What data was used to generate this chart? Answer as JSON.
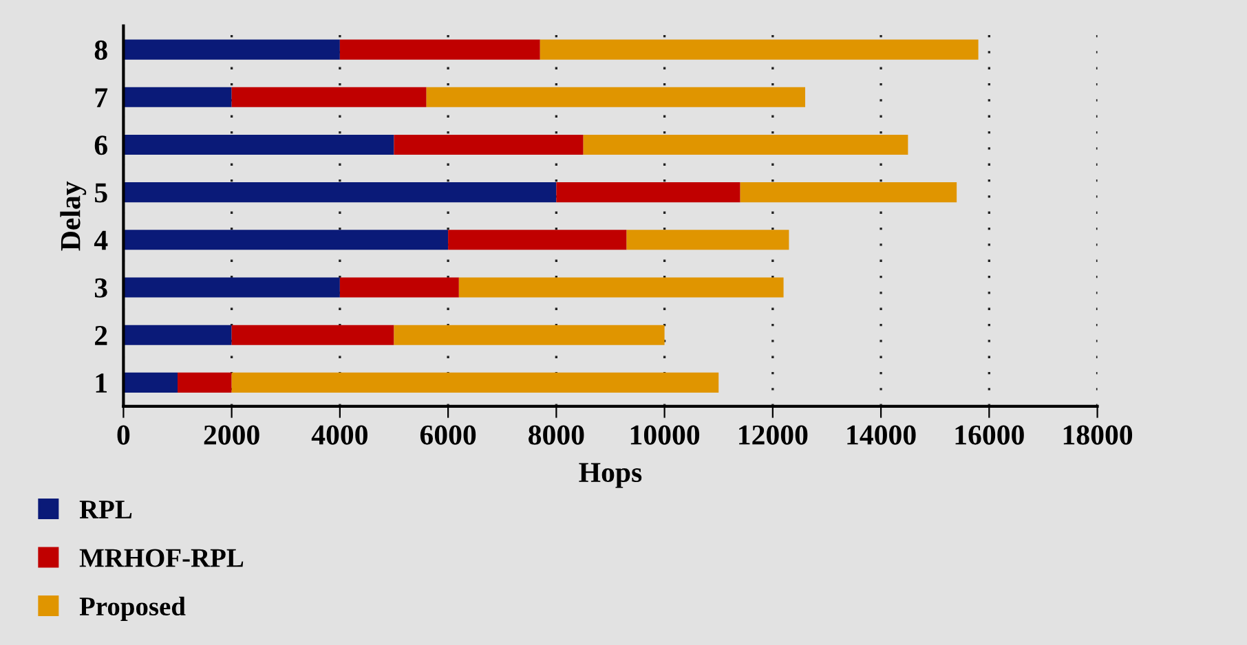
{
  "chart_data": {
    "type": "bar",
    "orientation": "horizontal",
    "stacked": true,
    "xlabel": "Hops",
    "ylabel": "Delay",
    "categories": [
      "8",
      "7",
      "6",
      "5",
      "4",
      "3",
      "2",
      "1"
    ],
    "series": [
      {
        "name": "RPL",
        "color": "#0a1a78",
        "values": [
          4000,
          2000,
          5000,
          8000,
          6000,
          4000,
          2000,
          1000
        ]
      },
      {
        "name": "MRHOF-RPL",
        "color": "#c00000",
        "values": [
          3700,
          3600,
          3500,
          3400,
          3300,
          2200,
          3000,
          1000
        ]
      },
      {
        "name": "Proposed",
        "color": "#e09500",
        "values": [
          8100,
          7000,
          6000,
          4000,
          3000,
          6000,
          5000,
          9000
        ]
      }
    ],
    "xlim": [
      0,
      18000
    ],
    "xticks": [
      0,
      2000,
      4000,
      6000,
      8000,
      10000,
      12000,
      14000,
      16000,
      18000
    ],
    "grid": "x",
    "legend": "bottom left"
  }
}
